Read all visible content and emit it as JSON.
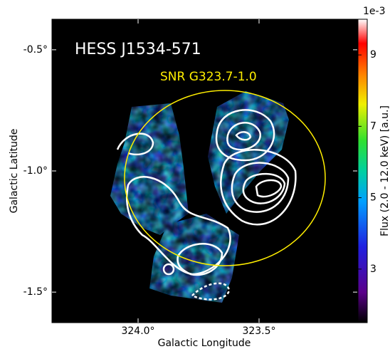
{
  "chart_data": {
    "type": "image",
    "title": "HESS J1534-571",
    "annotation": "SNR G323.7-1.0",
    "x_label": "Galactic Longitude",
    "y_label": "Galactic Latitude",
    "xlim": [
      324.356,
      323.094
    ],
    "ylim": [
      -1.626,
      -0.374
    ],
    "xticks": [
      {
        "value": 324.0,
        "label": "324.0°"
      },
      {
        "value": 323.5,
        "label": "323.5°"
      }
    ],
    "yticks": [
      {
        "value": -0.5,
        "label": "-0.5°"
      },
      {
        "value": -1.0,
        "label": "-1.0°"
      },
      {
        "value": -1.5,
        "label": "-1.5°"
      }
    ],
    "colorbar": {
      "label": "Flux (2.0 - 12.0 keV) [a.u.]",
      "multiplier": "1e-3",
      "lim": [
        1.5,
        10
      ],
      "ticks": [
        3,
        5,
        7,
        9
      ]
    }
  }
}
